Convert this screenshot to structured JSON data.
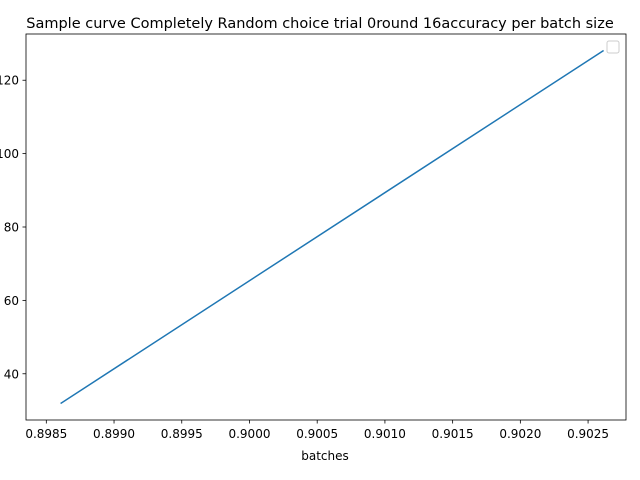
{
  "chart_data": {
    "type": "line",
    "title": "Sample curve Completely Random choice trial 0round 16accuracy per batch size",
    "xlabel": "batches",
    "ylabel": "",
    "x_ticks": [
      "0.8985",
      "0.8990",
      "0.8995",
      "0.9000",
      "0.9005",
      "0.9010",
      "0.9015",
      "0.9020",
      "0.9025"
    ],
    "y_ticks": [
      "40",
      "60",
      "80",
      "100",
      "120"
    ],
    "xlim": [
      0.89835,
      0.90278
    ],
    "ylim": [
      27.4,
      132.6
    ],
    "grid": false,
    "legend": "upper-right, empty",
    "series": [
      {
        "color": "#1f77b4",
        "x": [
          0.89861,
          0.90261
        ],
        "y": [
          32,
          128
        ]
      }
    ]
  }
}
